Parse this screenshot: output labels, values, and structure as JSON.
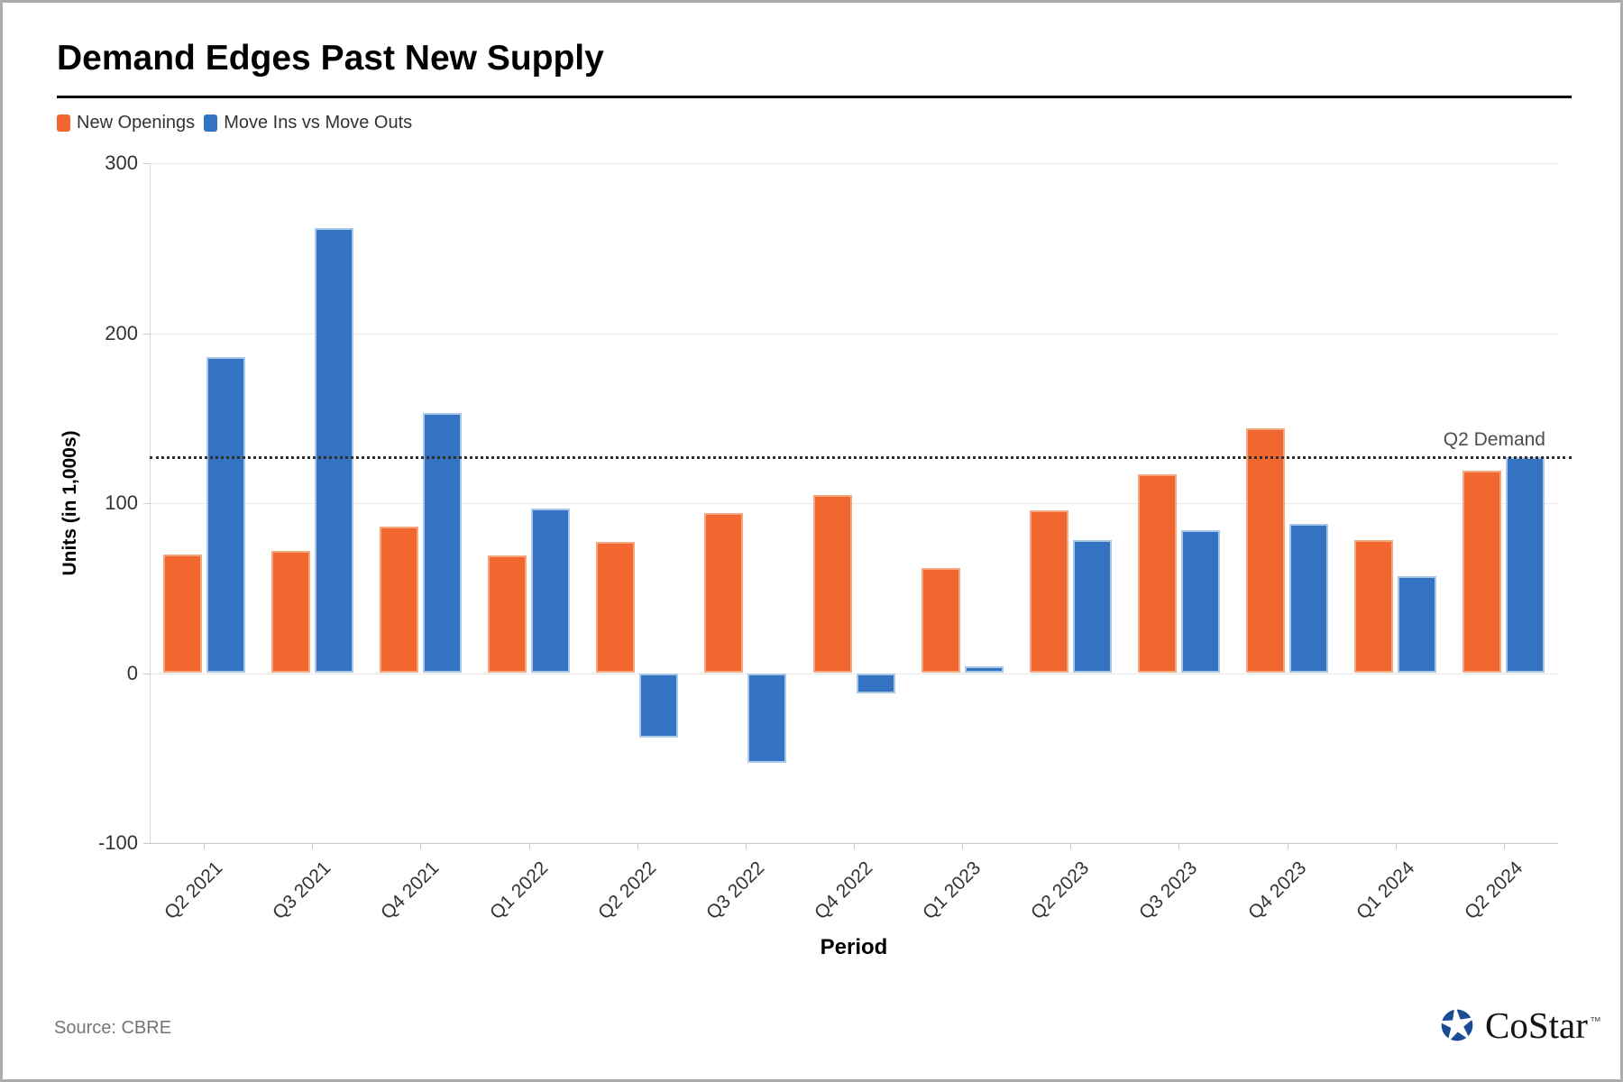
{
  "page": {
    "title": "Demand Edges Past New Supply",
    "source": "Source: CBRE",
    "logo_text": "CoStar",
    "logo_tm": "™"
  },
  "legend": [
    {
      "label": "New Openings",
      "color": "#F1672F"
    },
    {
      "label": "Move Ins vs Move Outs",
      "color": "#3473C2"
    }
  ],
  "colors": {
    "new_openings": "#F1672F",
    "new_openings_border": "#F4A87D",
    "move_ins": "#3473C2",
    "move_ins_border": "#A9C7E9",
    "gridline": "#E8E8E8",
    "axis_line": "#C9C9C9",
    "plotline": "#2F2F2F",
    "tick_text": "#333333",
    "logo_blue": "#1A4C96"
  },
  "chart_data": {
    "type": "bar",
    "title": "Demand Edges Past New Supply",
    "categories": [
      "Q2 2021",
      "Q3 2021",
      "Q4 2021",
      "Q1 2022",
      "Q2 2022",
      "Q3 2022",
      "Q4 2022",
      "Q1 2023",
      "Q2 2023",
      "Q3 2023",
      "Q4 2023",
      "Q1 2024",
      "Q2 2024"
    ],
    "series": [
      {
        "name": "New Openings",
        "color": "#F1672F",
        "values": [
          70,
          72,
          86,
          69,
          77,
          94,
          105,
          62,
          96,
          117,
          144,
          78,
          119
        ]
      },
      {
        "name": "Move Ins vs Move Outs",
        "color": "#3473C2",
        "values": [
          186,
          262,
          153,
          97,
          -38,
          -53,
          -12,
          4,
          78,
          84,
          88,
          57,
          127
        ]
      }
    ],
    "xlabel": "Period",
    "ylabel": "Units (in 1,000s)",
    "ylim": [
      -100,
      300
    ],
    "yticks": [
      300,
      200,
      100,
      0,
      -100
    ],
    "plotline": {
      "value": 127,
      "label": "Q2 Demand"
    },
    "grid": "horizontal",
    "legend_position": "top-left"
  }
}
